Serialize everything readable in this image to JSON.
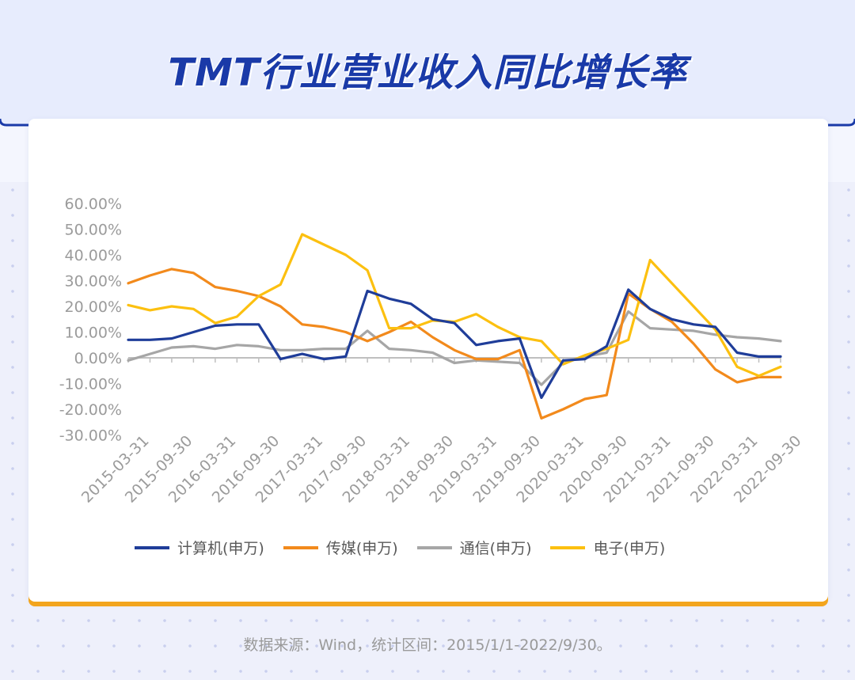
{
  "title": "TMT行业营业收入同比增长率",
  "source_note": "数据来源：Wind，统计区间：2015/1/1-2022/9/30。",
  "colors": {
    "computer": "#1f3d99",
    "media": "#f28a1c",
    "telecom": "#a6a6a6",
    "electronics": "#fcc010",
    "accent_bar": "#f3a51d",
    "title": "#1a3aa8"
  },
  "chart_data": {
    "type": "line",
    "x": [
      "2015-03-31",
      "2015-06-30",
      "2015-09-30",
      "2015-12-31",
      "2016-03-31",
      "2016-06-30",
      "2016-09-30",
      "2016-12-31",
      "2017-03-31",
      "2017-06-30",
      "2017-09-30",
      "2017-12-31",
      "2018-03-31",
      "2018-06-30",
      "2018-09-30",
      "2018-12-31",
      "2019-03-31",
      "2019-06-30",
      "2019-09-30",
      "2019-12-31",
      "2020-03-31",
      "2020-06-30",
      "2020-09-30",
      "2020-12-31",
      "2021-03-31",
      "2021-06-30",
      "2021-09-30",
      "2021-12-31",
      "2022-03-31",
      "2022-06-30",
      "2022-09-30"
    ],
    "tick_labels": [
      "2015-03-31",
      "2015-09-30",
      "2016-03-31",
      "2016-09-30",
      "2017-03-31",
      "2017-09-30",
      "2018-03-31",
      "2018-09-30",
      "2019-03-31",
      "2019-09-30",
      "2020-03-31",
      "2020-09-30",
      "2021-03-31",
      "2021-09-30",
      "2022-03-31",
      "2022-09-30"
    ],
    "y_tick_labels": [
      "60.00%",
      "50.00%",
      "40.00%",
      "30.00%",
      "20.00%",
      "10.00%",
      "0.00%",
      "-10.00%",
      "-20.00%",
      "-30.00%"
    ],
    "ylim": [
      -30,
      60
    ],
    "series": [
      {
        "name": "计算机(申万)",
        "color_key": "computer",
        "values": [
          7,
          7,
          7.5,
          10,
          12.5,
          13,
          13,
          -0.5,
          1.5,
          -0.5,
          0.5,
          26,
          23,
          21,
          15,
          13.5,
          5,
          6.5,
          7.5,
          -15.5,
          -1,
          -0.5,
          4.5,
          26.5,
          19,
          15,
          13,
          12,
          2,
          0.5,
          0.5
        ]
      },
      {
        "name": "传媒(申万)",
        "color_key": "media",
        "values": [
          29,
          32,
          34.5,
          33,
          27.5,
          26,
          24,
          20,
          13,
          12,
          10,
          6.5,
          10,
          14,
          8,
          3,
          -0.5,
          -0.5,
          3,
          -23.5,
          -20,
          -16,
          -14.5,
          25,
          19,
          14,
          5.5,
          -4.5,
          -9.5,
          -7.5,
          -7.5
        ]
      },
      {
        "name": "通信(申万)",
        "color_key": "telecom",
        "values": [
          -1,
          1.5,
          4,
          4.5,
          3.5,
          5,
          4.5,
          3,
          3,
          3.5,
          3.5,
          10.5,
          3.5,
          3,
          2,
          -2,
          -1,
          -1.5,
          -2,
          -10.5,
          -2,
          0.5,
          2,
          18,
          11.5,
          11,
          10.5,
          9,
          8,
          7.5,
          6.5
        ]
      },
      {
        "name": "电子(申万)",
        "color_key": "electronics",
        "values": [
          20.5,
          18.5,
          20,
          19,
          13.5,
          16,
          24,
          28.5,
          48,
          44,
          40,
          34,
          11.5,
          11.5,
          14.5,
          14,
          17,
          12,
          8,
          6.5,
          -2.5,
          1,
          3.5,
          7,
          38,
          29,
          20,
          11,
          -3.5,
          -7,
          -3.5
        ]
      }
    ]
  }
}
